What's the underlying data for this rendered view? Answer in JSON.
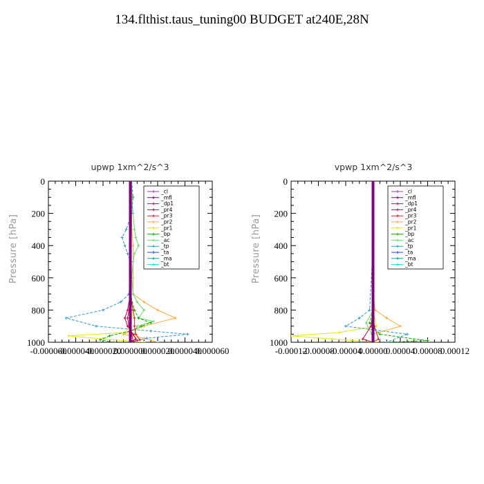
{
  "title": "134.flthist.taus_tuning00  BUDGET at240E,28N",
  "legend_labels": [
    "_cl",
    "_mfl",
    "_dp1",
    "_pr4",
    "_pr3",
    "_pr2",
    "_pr1",
    "_bp",
    "_ac",
    "_tp",
    "_ta",
    "_ma",
    "_bt"
  ],
  "series_colors": [
    "#9933cc",
    "#800080",
    "#cc0044",
    "#cc0044",
    "#cc2222",
    "#ffaa33",
    "#e6e600",
    "#00aa00",
    "#66dd66",
    "#3399cc",
    "#2244cc",
    "#2299aa",
    "#00dddd"
  ],
  "chart_data": [
    {
      "type": "line",
      "title": "upwp   1xm^2/s^3",
      "ylabel": "Pressure [hPa]",
      "ylim": [
        1000,
        0
      ],
      "xlim": [
        -6e-05,
        6e-05
      ],
      "yticks": [
        "0",
        "200",
        "400",
        "600",
        "800",
        "1000"
      ],
      "xticks": [
        "-0.000060",
        "-0.000040",
        "-0.000020",
        "0.000000",
        "0.000020",
        "0.000040",
        "0.000060"
      ],
      "series": [
        {
          "name": "_pr2",
          "p": [
            0,
            100,
            200,
            300,
            400,
            500,
            600,
            700,
            750,
            800,
            850,
            900,
            950,
            975,
            1000
          ],
          "v": [
            5e-07,
            1.5e-06,
            1e-06,
            1e-06,
            2e-06,
            2e-06,
            2e-06,
            2e-06,
            1e-05,
            2e-05,
            3.3e-05,
            1e-05,
            -5e-06,
            1e-05,
            2e-05
          ]
        },
        {
          "name": "_pr1",
          "p": [
            0,
            200,
            400,
            600,
            700,
            800,
            900,
            940,
            960,
            980,
            1000
          ],
          "v": [
            0,
            0,
            0,
            0,
            0,
            2e-06,
            0,
            -4e-06,
            -4.5e-05,
            -2e-05,
            1e-05
          ]
        },
        {
          "name": "_ac",
          "p": [
            0,
            100,
            200,
            300,
            350,
            400,
            450,
            500,
            600,
            700,
            750,
            800,
            850,
            870,
            900,
            950,
            1000
          ],
          "v": [
            1e-06,
            1e-06,
            2e-06,
            3e-06,
            4e-06,
            6e-06,
            3e-06,
            2e-06,
            1e-06,
            2e-06,
            5e-06,
            1e-05,
            6e-06,
            1.7e-05,
            5e-06,
            3e-06,
            4e-06
          ]
        },
        {
          "name": "_bp",
          "p": [
            0,
            400,
            700,
            800,
            850,
            880,
            900,
            930,
            960,
            985,
            1000
          ],
          "v": [
            0,
            0,
            0,
            3e-06,
            6e-06,
            1.5e-05,
            8e-06,
            0,
            -1.5e-05,
            -2.2e-05,
            -1.2e-05
          ]
        },
        {
          "name": "_tp",
          "p": [
            0,
            100,
            200,
            300,
            350,
            400,
            450,
            500,
            600,
            700,
            750,
            800,
            850,
            900,
            930,
            950,
            975,
            1000
          ],
          "v": [
            1e-06,
            2e-06,
            1e-06,
            -3e-06,
            -6e-06,
            -4e-06,
            -2e-06,
            0,
            0,
            -1e-06,
            -7e-06,
            -2e-05,
            -4.7e-05,
            -2.5e-05,
            1.5e-05,
            4.2e-05,
            1.2e-05,
            0
          ]
        },
        {
          "name": "_pr4",
          "p": [
            0,
            200,
            400,
            600,
            700,
            800,
            850,
            900,
            950,
            980,
            1000
          ],
          "v": [
            0,
            0,
            0,
            0,
            0,
            -2e-06,
            -4e-06,
            -2e-06,
            2e-06,
            4e-06,
            1e-06
          ]
        },
        {
          "name": "_pr3",
          "p": [
            0,
            200,
            400,
            600,
            700,
            800,
            850,
            900,
            950,
            985,
            1000
          ],
          "v": [
            0,
            0,
            0,
            0,
            0,
            2e-06,
            3e-06,
            3e-06,
            4e-06,
            7e-06,
            1e-06
          ]
        },
        {
          "name": "_dp1",
          "p": [
            0,
            200,
            400,
            600,
            700,
            800,
            850,
            900,
            950,
            990,
            1000
          ],
          "v": [
            0,
            0,
            0,
            0,
            0,
            -1e-06,
            -2e-06,
            -1e-06,
            1e-06,
            2e-06,
            0
          ]
        },
        {
          "name": "_cl",
          "p": [
            0,
            200,
            400,
            600,
            800,
            900,
            1000
          ],
          "v": [
            0,
            0,
            0,
            0,
            0,
            0,
            0
          ]
        },
        {
          "name": "_mfl",
          "p": [
            0,
            200,
            400,
            600,
            800,
            900,
            1000
          ],
          "v": [
            0,
            0,
            0,
            0,
            0,
            0,
            0
          ]
        }
      ]
    },
    {
      "type": "line",
      "title": "vpwp   1xm^2/s^3",
      "ylabel": "Pressure [hPa]",
      "ylim": [
        1000,
        0
      ],
      "xlim": [
        -0.00012,
        0.00012
      ],
      "yticks": [
        "0",
        "200",
        "400",
        "600",
        "800",
        "1000"
      ],
      "xticks": [
        "-0.00012",
        "-0.00008",
        "-0.00004",
        "0.00000",
        "0.00004",
        "0.00008",
        "0.00012"
      ],
      "series": [
        {
          "name": "_pr2",
          "p": [
            0,
            200,
            400,
            600,
            700,
            800,
            850,
            900,
            950,
            1000
          ],
          "v": [
            0,
            0,
            0,
            0,
            0,
            3e-06,
            2e-05,
            4e-05,
            0,
            0
          ]
        },
        {
          "name": "_pr1",
          "p": [
            0,
            400,
            800,
            900,
            940,
            960,
            980,
            1000
          ],
          "v": [
            0,
            0,
            0,
            5e-06,
            -5e-05,
            -0.00012,
            -6e-05,
            5e-06
          ]
        },
        {
          "name": "_ac",
          "p": [
            0,
            400,
            800,
            880,
            950,
            1000
          ],
          "v": [
            0,
            0,
            0,
            -1e-05,
            -2e-06,
            0
          ]
        },
        {
          "name": "_bp",
          "p": [
            0,
            400,
            800,
            880,
            950,
            990,
            1000
          ],
          "v": [
            0,
            0,
            0,
            -5e-06,
            1e-05,
            8e-05,
            2e-05
          ]
        },
        {
          "name": "_tp",
          "p": [
            0,
            400,
            800,
            850,
            900,
            950,
            1000
          ],
          "v": [
            0,
            0,
            -5e-06,
            -2e-05,
            -4e-05,
            5e-05,
            2e-05
          ]
        },
        {
          "name": "_pr4",
          "p": [
            0,
            400,
            800,
            900,
            980,
            1000
          ],
          "v": [
            0,
            0,
            0,
            -3e-06,
            -1.5e-05,
            0
          ]
        },
        {
          "name": "_pr3",
          "p": [
            0,
            400,
            800,
            900,
            980,
            1000
          ],
          "v": [
            0,
            0,
            0,
            2e-06,
            8e-06,
            0
          ]
        },
        {
          "name": "_cl",
          "p": [
            0,
            400,
            800,
            1000
          ],
          "v": [
            0,
            0,
            0,
            0
          ]
        },
        {
          "name": "_mfl",
          "p": [
            0,
            400,
            800,
            1000
          ],
          "v": [
            0,
            0,
            0,
            0
          ]
        }
      ]
    }
  ]
}
